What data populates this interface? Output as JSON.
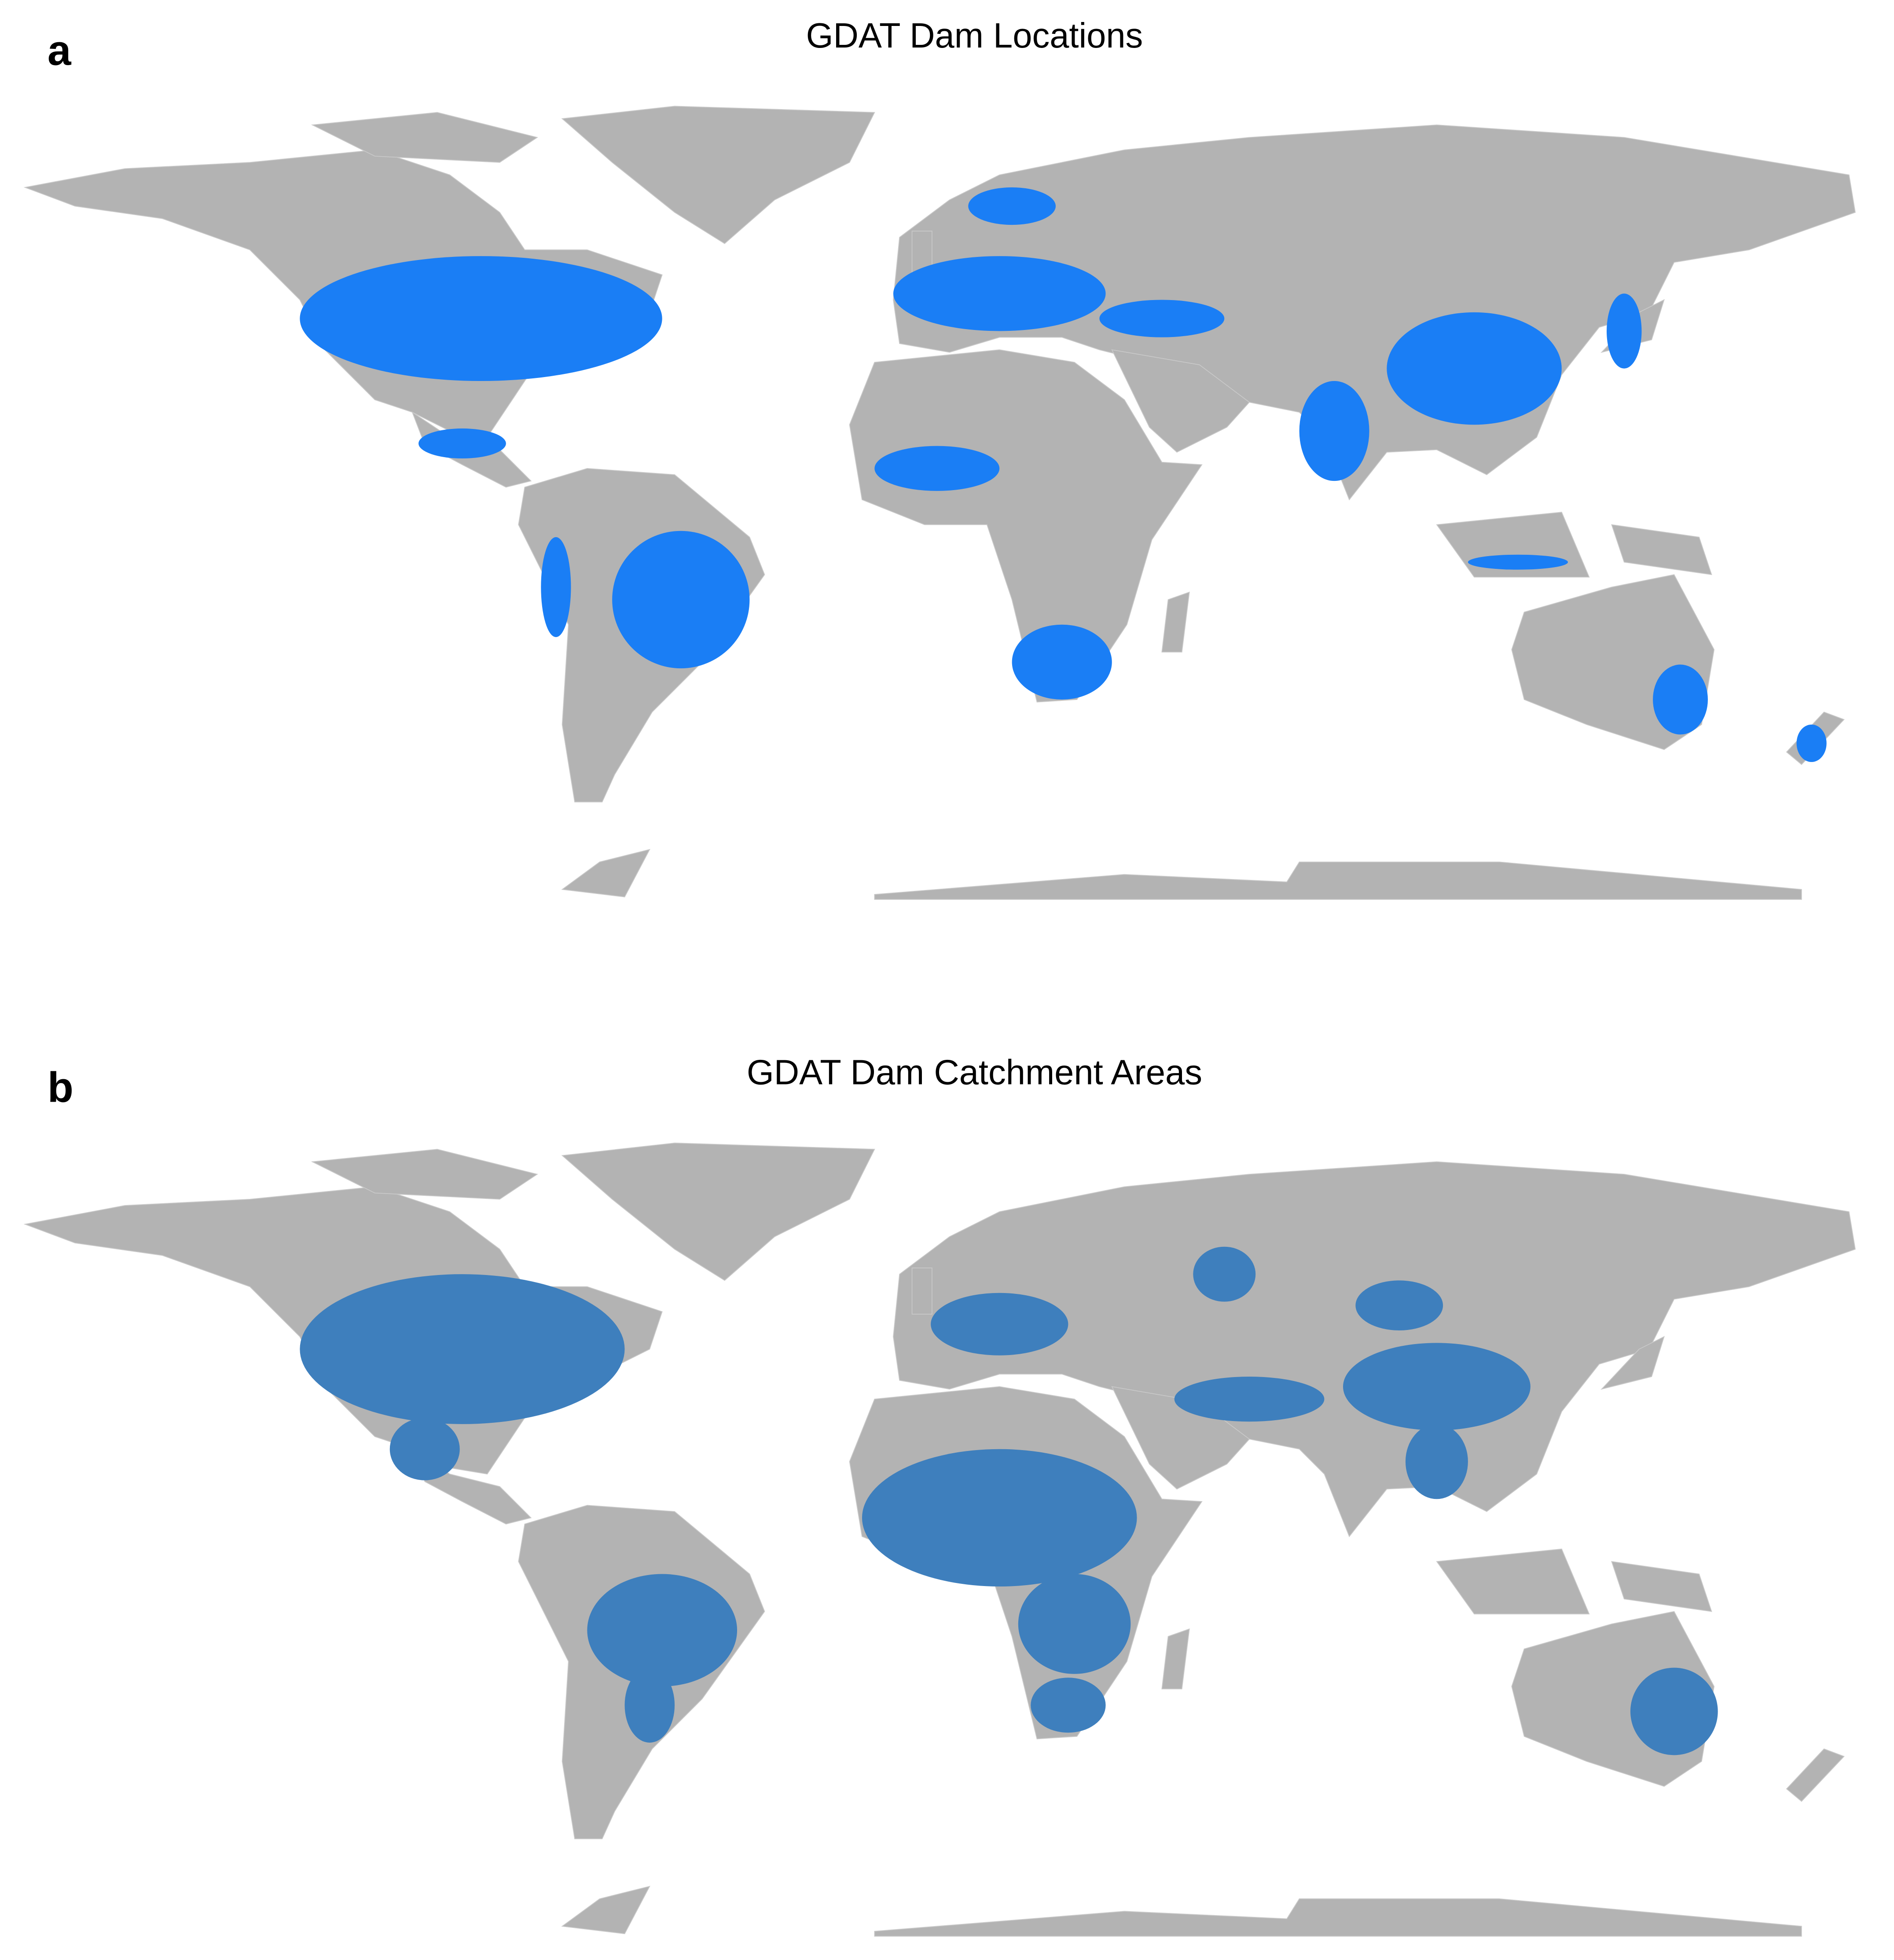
{
  "panels": [
    {
      "label": "a",
      "title": "GDAT Dam Locations"
    },
    {
      "label": "b",
      "title": "GDAT Dam Catchment Areas"
    }
  ]
}
